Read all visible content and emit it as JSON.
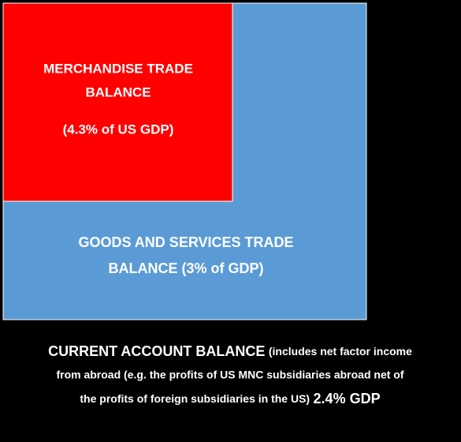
{
  "boxes": {
    "merchandise": {
      "lines": [
        "MERCHANDISE TRADE",
        "BALANCE",
        "(4.3% of US GDP)"
      ]
    },
    "goods_services": {
      "lines": [
        "GOODS AND SERVICES TRADE",
        "BALANCE (3% of GDP)"
      ]
    },
    "current_account": {
      "title": "CURRENT ACCOUNT BALANCE",
      "lines": [
        "(includes net factor income",
        "from abroad (e.g. the profits of US MNC subsidiaries abroad net of",
        "the profits of foreign subsidiaries in the US)"
      ],
      "value": "2.4% GDP"
    }
  }
}
